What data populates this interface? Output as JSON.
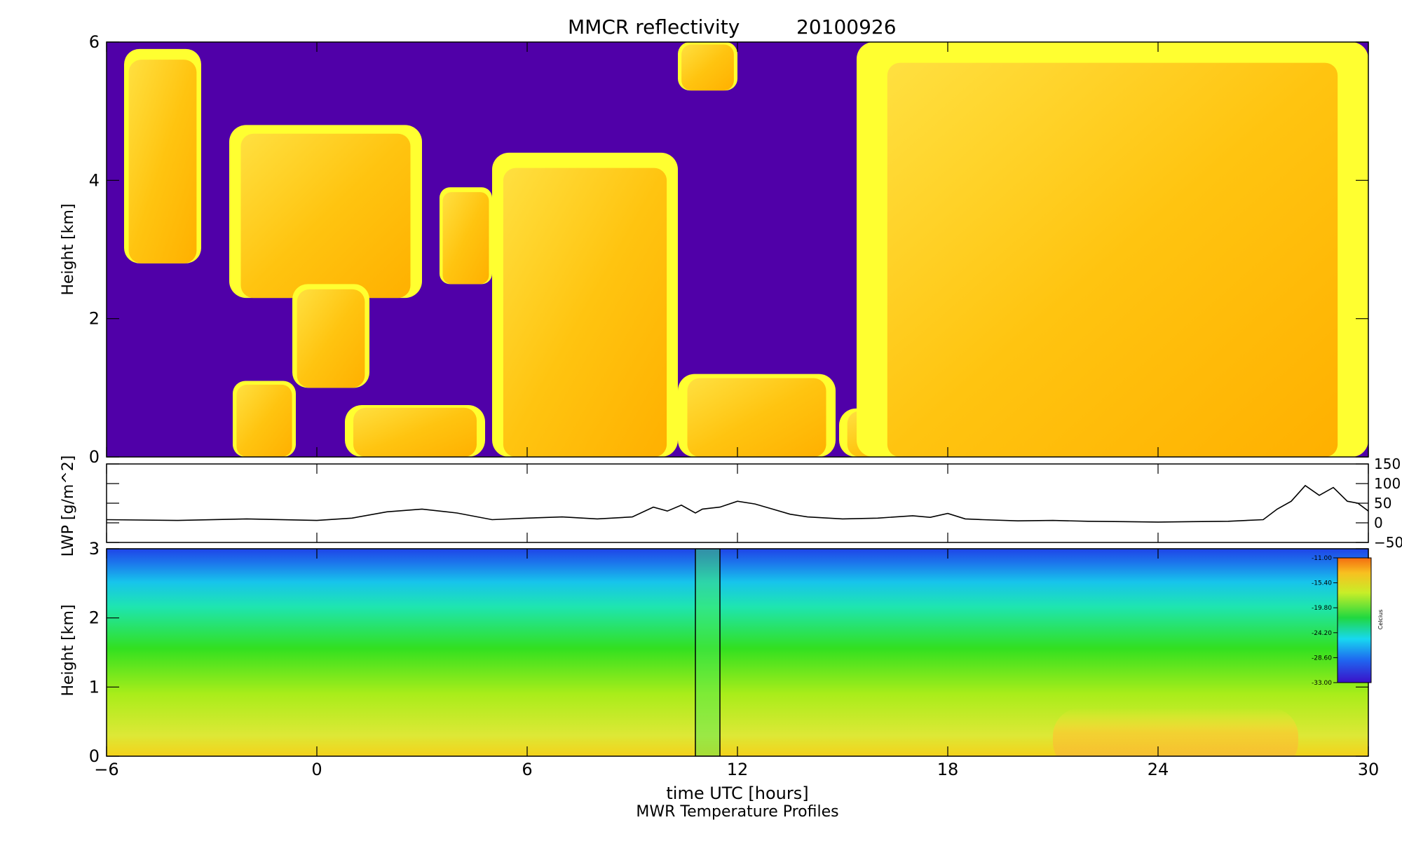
{
  "figure": {
    "title": "MMCR reflectivity",
    "date": "20100926",
    "x_axis_label": "time UTC [hours]",
    "bottom_caption": "MWR Temperature Profiles"
  },
  "chart_data": [
    {
      "type": "heatmap",
      "id": "reflectivity",
      "title": "MMCR reflectivity",
      "ylabel": "Height [km]",
      "xlim": [
        -6,
        30
      ],
      "ylim": [
        0,
        6
      ],
      "x_ticks": [
        -6,
        0,
        6,
        12,
        18,
        24,
        30
      ],
      "y_ticks": [
        0,
        2,
        4,
        6
      ],
      "background_color": "#5000a8",
      "cloud_colors": [
        "#ffff30",
        "#ffd000",
        "#ffb000"
      ],
      "cloud_regions": [
        {
          "x": [
            -5.5,
            -3.3
          ],
          "y": [
            2.8,
            5.9
          ]
        },
        {
          "x": [
            -2.5,
            3.0
          ],
          "y": [
            2.3,
            4.8
          ]
        },
        {
          "x": [
            -2.4,
            -0.6
          ],
          "y": [
            0,
            1.1
          ]
        },
        {
          "x": [
            -0.7,
            1.5
          ],
          "y": [
            1.0,
            2.5
          ]
        },
        {
          "x": [
            0.8,
            4.8
          ],
          "y": [
            0,
            0.75
          ]
        },
        {
          "x": [
            3.5,
            5.0
          ],
          "y": [
            2.5,
            3.9
          ]
        },
        {
          "x": [
            5.0,
            10.3
          ],
          "y": [
            0,
            4.4
          ]
        },
        {
          "x": [
            10.3,
            14.8
          ],
          "y": [
            0,
            1.2
          ]
        },
        {
          "x": [
            10.3,
            12.0
          ],
          "y": [
            5.3,
            6.0
          ]
        },
        {
          "x": [
            14.9,
            18.8
          ],
          "y": [
            0,
            0.7
          ]
        },
        {
          "x": [
            15.4,
            30.0
          ],
          "y": [
            0,
            6.0
          ]
        }
      ]
    },
    {
      "type": "line",
      "id": "lwp",
      "ylabel": "LWP [g/m^2]",
      "xlim": [
        -6,
        30
      ],
      "ylim": [
        -50,
        150
      ],
      "y_ticks": [
        -50,
        0,
        50,
        100,
        150
      ],
      "x": [
        -6,
        -4,
        -2,
        0,
        1,
        2,
        3,
        4,
        5,
        6,
        7,
        8,
        9,
        9.6,
        10,
        10.4,
        10.8,
        11,
        11.5,
        12,
        12.5,
        13,
        13.5,
        14,
        15,
        16,
        17,
        17.5,
        18,
        18.5,
        19,
        20,
        21,
        22,
        23,
        24,
        25,
        26,
        27,
        27.4,
        27.8,
        28.2,
        28.6,
        29,
        29.4,
        29.7,
        30
      ],
      "y": [
        8,
        6,
        10,
        6,
        12,
        28,
        35,
        25,
        8,
        12,
        15,
        10,
        15,
        40,
        30,
        45,
        25,
        35,
        40,
        55,
        48,
        35,
        22,
        15,
        10,
        12,
        18,
        14,
        24,
        10,
        8,
        5,
        6,
        4,
        3,
        2,
        3,
        4,
        8,
        35,
        55,
        95,
        70,
        90,
        55,
        50,
        30
      ]
    },
    {
      "type": "heatmap",
      "id": "temperature",
      "ylabel": "Height [km]",
      "xlim": [
        -6,
        30
      ],
      "ylim": [
        0,
        3
      ],
      "y_ticks": [
        0,
        1,
        2,
        3
      ],
      "colorbar": {
        "label": "Celcius",
        "ticks": [
          "-11.00",
          "-15.40",
          "-19.80",
          "-24.20",
          "-28.60",
          "-33.00"
        ]
      },
      "missing_data_x": [
        10.8,
        11.5
      ],
      "warm_region": {
        "x": [
          21,
          28
        ],
        "y": [
          0,
          0.7
        ]
      }
    }
  ]
}
